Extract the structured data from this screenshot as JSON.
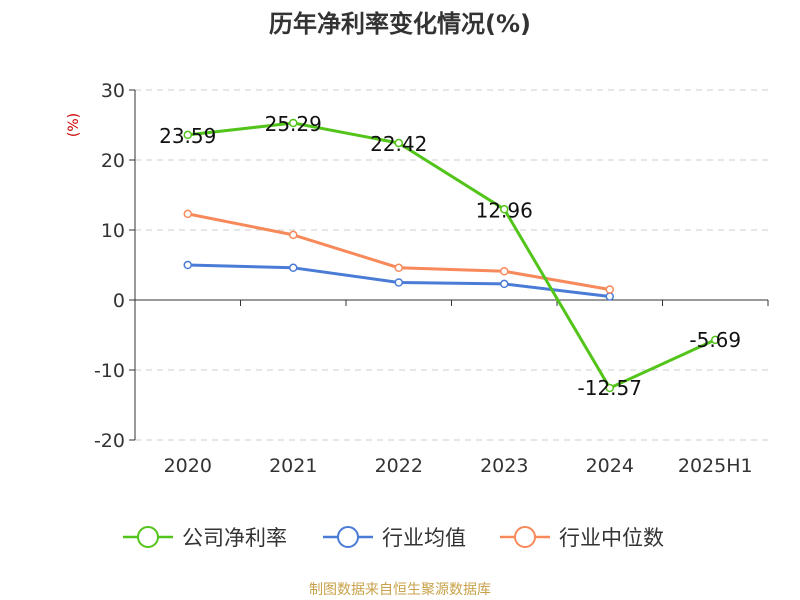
{
  "chart_data": {
    "type": "line",
    "title": "历年净利率变化情况(%)",
    "ylabel": "(%)",
    "xlabel": "",
    "categories": [
      "2020",
      "2021",
      "2022",
      "2023",
      "2024",
      "2025H1"
    ],
    "ylim": [
      -20,
      30
    ],
    "yticks": [
      30,
      20,
      10,
      0,
      -10,
      -20
    ],
    "grid": true,
    "legend_position": "bottom",
    "series": [
      {
        "name": "公司净利率",
        "color": "#52c41a",
        "values": [
          23.59,
          25.29,
          22.42,
          12.96,
          -12.57,
          -5.69
        ],
        "labels": [
          "23.59",
          "25.29",
          "22.42",
          "12.96",
          "-12.57",
          "-5.69"
        ]
      },
      {
        "name": "行业均值",
        "color": "#4a7bd6",
        "values": [
          5.0,
          4.6,
          2.5,
          2.3,
          0.5,
          null
        ]
      },
      {
        "name": "行业中位数",
        "color": "#f7895a",
        "values": [
          12.3,
          9.3,
          4.6,
          4.1,
          1.5,
          null
        ]
      }
    ],
    "ylabel_color": "#cc0000"
  },
  "footer": {
    "source": "制图数据来自恒生聚源数据库",
    "source_color": "#c8a24a"
  }
}
